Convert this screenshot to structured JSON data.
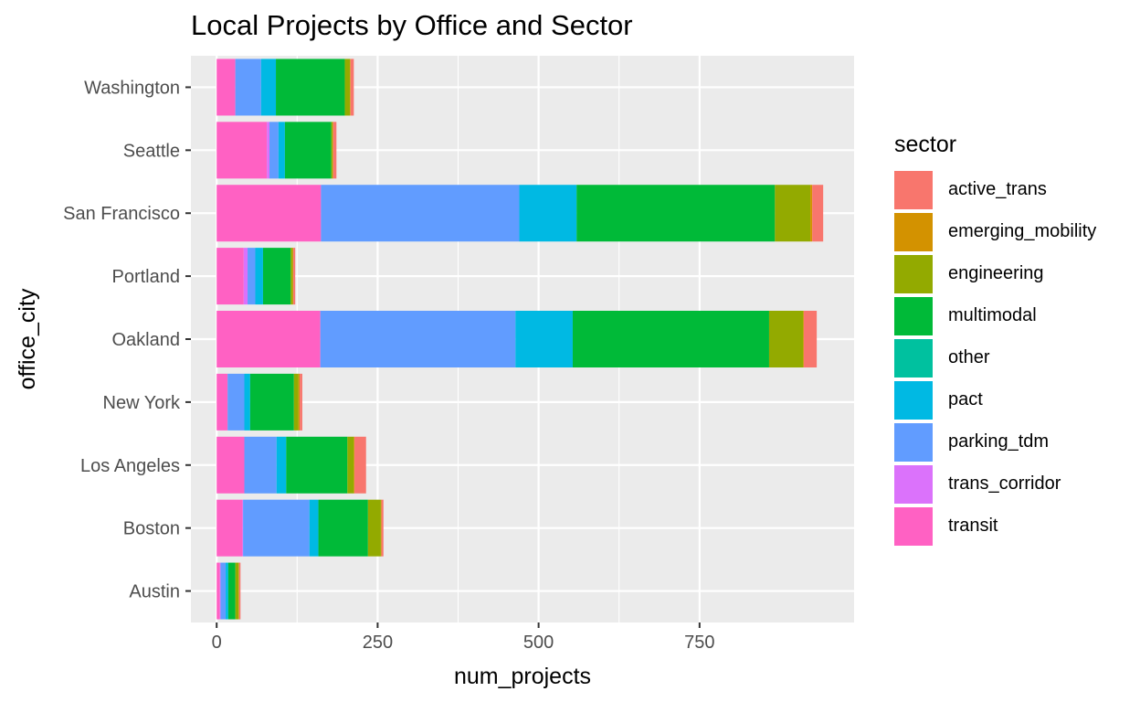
{
  "chart_data": {
    "type": "bar",
    "orientation": "horizontal",
    "stacked": true,
    "title": "Local Projects by Office and Sector",
    "xlabel": "num_projects",
    "ylabel": "office_city",
    "xlim": [
      -40,
      990
    ],
    "xticks": [
      0,
      250,
      500,
      750
    ],
    "grid": true,
    "legend": {
      "title": "sector",
      "position": "right"
    },
    "categories": [
      "Austin",
      "Boston",
      "Los Angeles",
      "New York",
      "Oakland",
      "Portland",
      "San Francisco",
      "Seattle",
      "Washington"
    ],
    "series": [
      {
        "name": "transit",
        "color": "#FF61C3",
        "values": [
          5,
          40,
          43,
          17,
          161,
          42,
          162,
          78,
          29
        ]
      },
      {
        "name": "trans_corridor",
        "color": "#DB72FB",
        "values": [
          1,
          1,
          0,
          0,
          0,
          6,
          0,
          4,
          0
        ]
      },
      {
        "name": "parking_tdm",
        "color": "#619CFF",
        "values": [
          8,
          103,
          50,
          26,
          303,
          12,
          308,
          14,
          40
        ]
      },
      {
        "name": "pact",
        "color": "#00B9E3",
        "values": [
          4,
          14,
          15,
          9,
          89,
          12,
          89,
          10,
          23
        ]
      },
      {
        "name": "other",
        "color": "#00C19F",
        "values": [
          0,
          0,
          0,
          0,
          0,
          0,
          0,
          0,
          0
        ]
      },
      {
        "name": "multimodal",
        "color": "#00BA38",
        "values": [
          11,
          77,
          95,
          68,
          305,
          43,
          308,
          72,
          107
        ]
      },
      {
        "name": "engineering",
        "color": "#93AA00",
        "values": [
          5,
          20,
          10,
          7,
          53,
          3,
          55,
          2,
          8
        ]
      },
      {
        "name": "emerging_mobility",
        "color": "#D39200",
        "values": [
          1,
          1,
          1,
          2,
          1,
          1,
          3,
          1,
          1
        ]
      },
      {
        "name": "active_trans",
        "color": "#F8766D",
        "values": [
          2,
          3,
          18,
          4,
          20,
          3,
          17,
          5,
          5
        ]
      }
    ],
    "legend_order": [
      "active_trans",
      "emerging_mobility",
      "engineering",
      "multimodal",
      "other",
      "pact",
      "parking_tdm",
      "trans_corridor",
      "transit"
    ]
  }
}
